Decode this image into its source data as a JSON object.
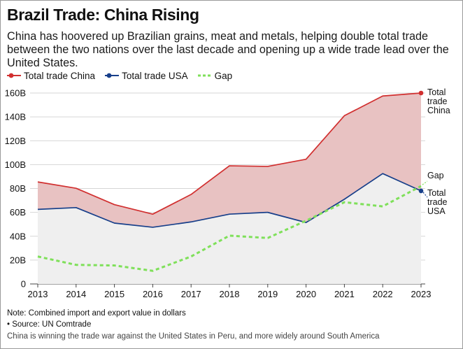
{
  "title": "Brazil Trade: China Rising",
  "subtitle": "China has hoovered up Brazilian grains, meat and metals, helping double total trade between the two nations over the last decade and opening up a wide trade lead over the United States.",
  "note": "Note: Combined import and export value in dollars",
  "source": "• Source: UN Comtrade",
  "caption": "China is winning the trade war against the United States in Peru, and more widely around South America",
  "colors": {
    "china": "#d12f2f",
    "usa": "#173f8a",
    "gap": "#7fe05a",
    "china_fill": "#e8c2c2",
    "usa_fill": "#efefef"
  },
  "legend": [
    {
      "label": "Total trade China",
      "key": "china",
      "style": "dot-line"
    },
    {
      "label": "Total trade USA",
      "key": "usa",
      "style": "dot-line"
    },
    {
      "label": "Gap",
      "key": "gap",
      "style": "dashed"
    }
  ],
  "chart_data": {
    "type": "line",
    "x": [
      "2013",
      "2014",
      "2015",
      "2016",
      "2017",
      "2018",
      "2019",
      "2020",
      "2021",
      "2022",
      "2023"
    ],
    "series": [
      {
        "name": "Total trade China",
        "key": "china",
        "values": [
          85.5,
          80.2,
          66.5,
          58.5,
          75.0,
          99.0,
          98.5,
          104.5,
          141.0,
          157.5,
          160.0
        ]
      },
      {
        "name": "Total trade USA",
        "key": "usa",
        "values": [
          62.5,
          64.0,
          51.0,
          47.5,
          52.0,
          58.5,
          60.0,
          51.5,
          71.0,
          92.5,
          78.0
        ]
      },
      {
        "name": "Gap",
        "key": "gap",
        "values": [
          23.0,
          16.0,
          15.5,
          11.0,
          23.0,
          40.5,
          38.5,
          53.0,
          68.5,
          65.0,
          82.0
        ]
      }
    ],
    "yticks": [
      "0",
      "20B",
      "40B",
      "60B",
      "80B",
      "100B",
      "120B",
      "140B",
      "160B"
    ],
    "ylim": [
      0,
      170
    ],
    "end_labels": [
      {
        "key": "china",
        "lines": [
          "Total",
          "trade",
          "China"
        ]
      },
      {
        "key": "gap",
        "lines": [
          "Gap"
        ]
      },
      {
        "key": "usa",
        "lines": [
          "Total",
          "trade",
          "USA"
        ]
      }
    ],
    "grid": true,
    "legend_position": "top-left"
  }
}
